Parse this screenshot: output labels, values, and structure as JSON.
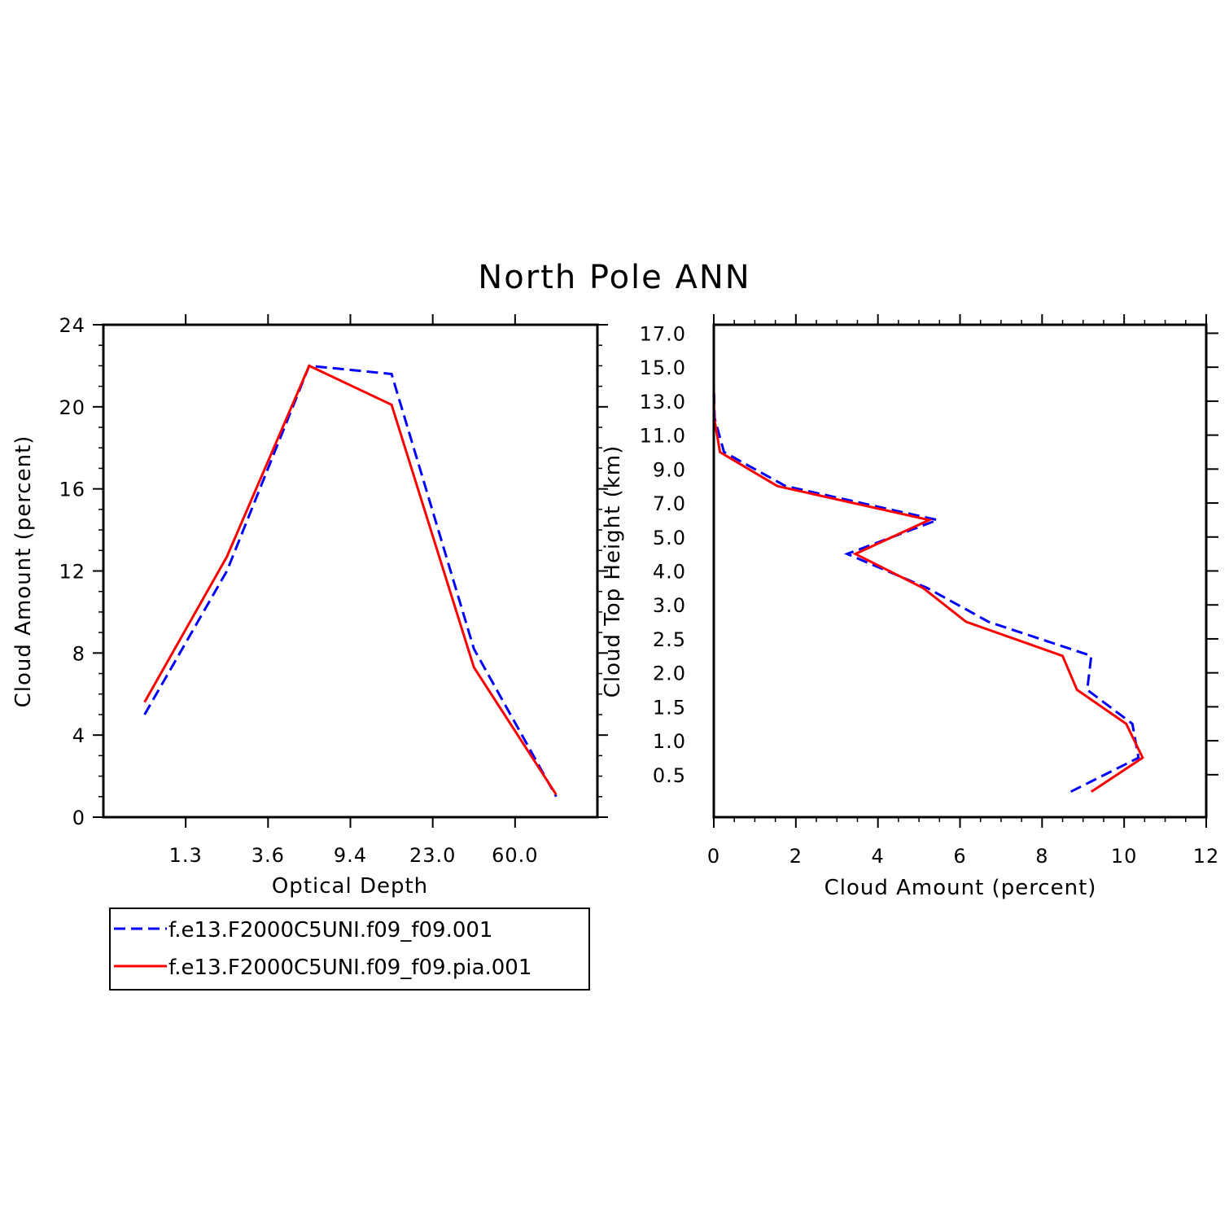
{
  "figure": {
    "title": "North Pole ANN",
    "legend": {
      "placement": "bottom-left",
      "entries": [
        {
          "label": "f.e13.F2000C5UNI.f09_f09.001",
          "color": "#0000ff",
          "dash": "dashed"
        },
        {
          "label": "f.e13.F2000C5UNI.f09_f09.pia.001",
          "color": "#ff0000",
          "dash": "solid"
        }
      ]
    }
  },
  "chart_data": [
    {
      "type": "line",
      "xlabel": "Optical Depth",
      "ylabel": "Cloud Amount (percent)",
      "categories": [
        "1.3",
        "3.6",
        "9.4",
        "23.0",
        "60.0"
      ],
      "ylim": [
        0,
        24
      ],
      "yticks": [
        0,
        4,
        8,
        12,
        16,
        20,
        24
      ],
      "grid": false,
      "series": [
        {
          "name": "f.e13.F2000C5UNI.f09_f09.001",
          "color": "#0000ff",
          "dash": "dashed",
          "x": [
            0.5,
            1.5,
            2.5,
            3.5,
            4.5,
            5.5
          ],
          "values": [
            5.0,
            12.0,
            22.0,
            21.6,
            8.2,
            1.0
          ]
        },
        {
          "name": "f.e13.F2000C5UNI.f09_f09.pia.001",
          "color": "#ff0000",
          "dash": "solid",
          "x": [
            0.5,
            1.5,
            2.5,
            3.5,
            4.5,
            5.5
          ],
          "values": [
            5.6,
            12.7,
            22.0,
            20.1,
            7.3,
            1.1
          ]
        }
      ]
    },
    {
      "type": "line",
      "xlabel": "Cloud Amount (percent)",
      "ylabel": "Cloud Top Height (km)",
      "xlim": [
        0,
        12
      ],
      "xticks": [
        0,
        2,
        4,
        6,
        8,
        10,
        12
      ],
      "ytick_labels": [
        "0.5",
        "1.0",
        "1.5",
        "2.0",
        "2.5",
        "3.0",
        "4.0",
        "5.0",
        "7.0",
        "9.0",
        "11.0",
        "13.0",
        "15.0",
        "17.0"
      ],
      "grid": false,
      "series": [
        {
          "name": "f.e13.F2000C5UNI.f09_f09.001",
          "color": "#0000ff",
          "dash": "dashed",
          "levels": [
            0.25,
            0.75,
            1.25,
            1.75,
            2.25,
            2.75,
            3.5,
            4.5,
            6.0,
            8.0,
            10.0,
            12.0,
            14.0,
            16.0,
            18.0
          ],
          "values": [
            8.7,
            10.35,
            10.2,
            9.1,
            9.2,
            6.7,
            5.2,
            3.25,
            5.45,
            1.75,
            0.25,
            0.02,
            0.0,
            0.0,
            0.0
          ]
        },
        {
          "name": "f.e13.F2000C5UNI.f09_f09.pia.001",
          "color": "#ff0000",
          "dash": "solid",
          "levels": [
            0.25,
            0.75,
            1.25,
            1.75,
            2.25,
            2.75,
            3.5,
            4.5,
            6.0,
            8.0,
            10.0,
            12.0,
            14.0,
            16.0,
            18.0
          ],
          "values": [
            9.2,
            10.45,
            10.05,
            8.85,
            8.5,
            6.15,
            5.1,
            3.45,
            5.25,
            1.55,
            0.15,
            0.01,
            0.0,
            0.0,
            0.0
          ]
        }
      ]
    }
  ]
}
